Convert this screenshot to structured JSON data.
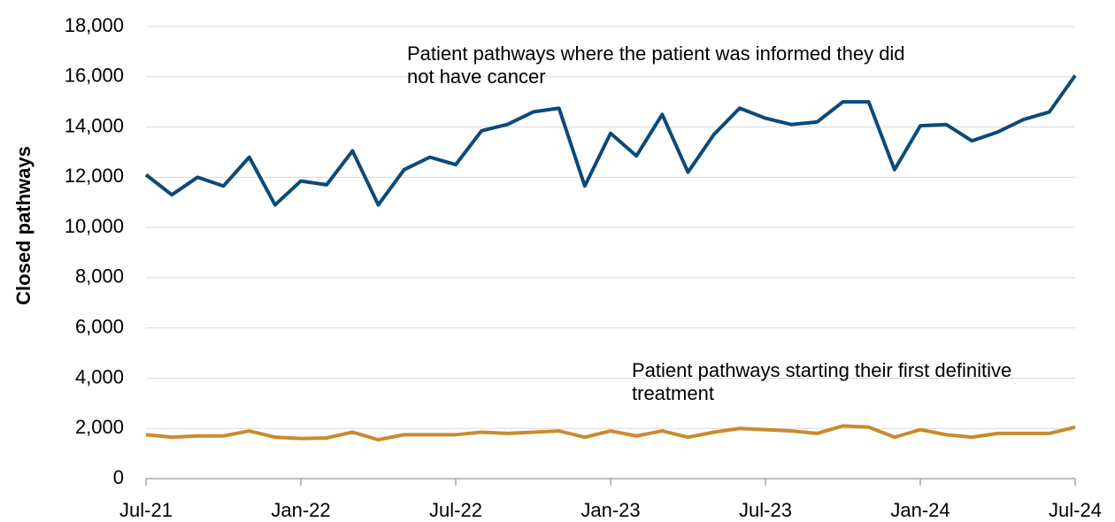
{
  "chart_data": {
    "type": "line",
    "y_label": "Closed pathways",
    "categories": [
      "Jul-21",
      null,
      null,
      null,
      null,
      null,
      "Jan-22",
      null,
      null,
      null,
      null,
      null,
      "Jul-22",
      null,
      null,
      null,
      null,
      null,
      "Jan-23",
      null,
      null,
      null,
      null,
      null,
      "Jul-23",
      null,
      null,
      null,
      null,
      null,
      "Jan-24",
      null,
      null,
      null,
      null,
      null,
      "Jul-24"
    ],
    "series": [
      {
        "name": "Patient pathways where the patient was informed they did not have cancer",
        "color": "#0b4a7a",
        "values": [
          12100,
          11300,
          12000,
          11650,
          12800,
          10900,
          11850,
          11700,
          13050,
          10900,
          12300,
          12800,
          12500,
          13850,
          14100,
          14600,
          14750,
          11650,
          13750,
          12850,
          14500,
          12200,
          13700,
          14750,
          14350,
          14100,
          14200,
          15000,
          15000,
          12300,
          14050,
          14100,
          13450,
          13800,
          14300,
          14600,
          16050
        ]
      },
      {
        "name": "Patient pathways starting their first definitive treatment",
        "color": "#c98b2c",
        "values": [
          1750,
          1650,
          1700,
          1700,
          1900,
          1650,
          1600,
          1620,
          1850,
          1550,
          1750,
          1750,
          1750,
          1850,
          1800,
          1850,
          1900,
          1650,
          1900,
          1700,
          1900,
          1650,
          1850,
          2000,
          1950,
          1900,
          1800,
          2100,
          2050,
          1650,
          1950,
          1750,
          1650,
          1800,
          1800,
          1800,
          2050
        ]
      }
    ],
    "ylim": [
      0,
      18000
    ],
    "yticks": [
      0,
      {
        "value": 2000,
        "label": "2,000"
      },
      {
        "value": 4000,
        "label": "4,000"
      },
      {
        "value": 6000,
        "label": "6,000"
      },
      {
        "value": 8000,
        "label": "8,000"
      },
      {
        "value": 10000,
        "label": "10,000"
      },
      {
        "value": 12000,
        "label": "12,000"
      },
      {
        "value": 14000,
        "label": "14,000"
      },
      {
        "value": 16000,
        "label": "16,000"
      },
      {
        "value": 18000,
        "label": "18,000"
      }
    ],
    "grid": true
  }
}
